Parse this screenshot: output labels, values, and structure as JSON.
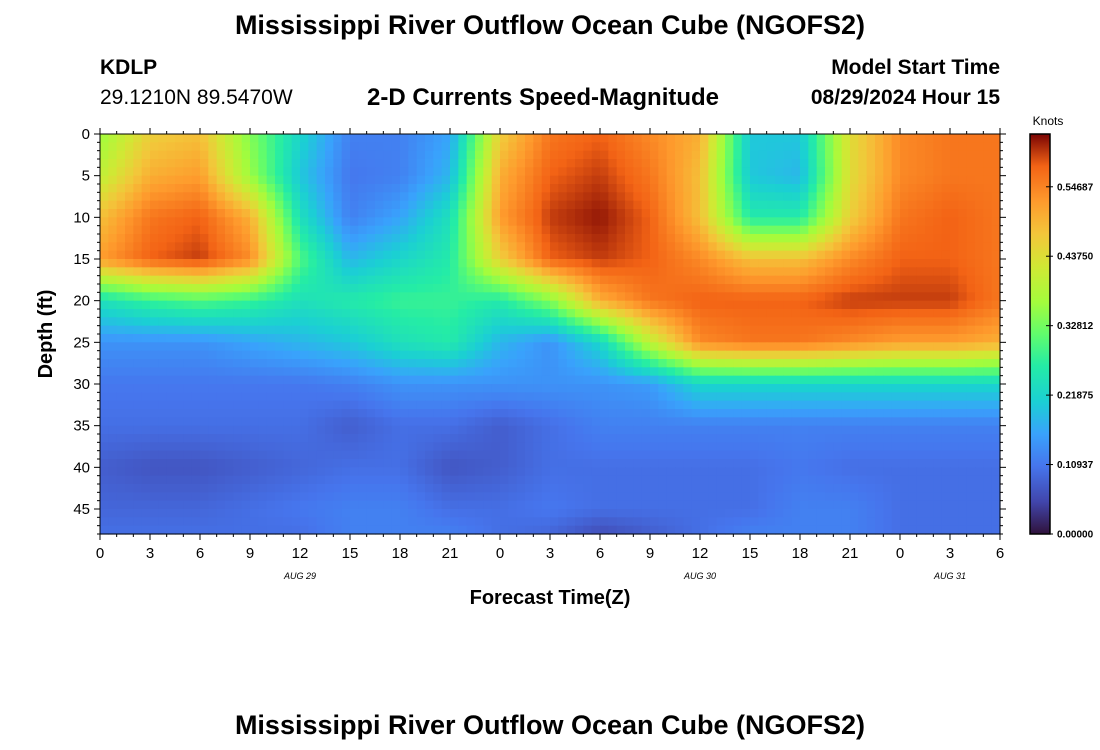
{
  "page": {
    "title": "Mississippi River Outflow Ocean Cube (NGOFS2)",
    "station": "KDLP",
    "coords": "29.1210N  89.5470W",
    "subtitle": "2-D Currents Speed-Magnitude",
    "model_start_label": "Model Start Time",
    "model_start_value": "08/29/2024 Hour 15",
    "bottom_title": "Mississippi River Outflow Ocean Cube (NGOFS2)"
  },
  "chart_data": {
    "type": "heatmap",
    "xlabel": "Forecast Time(Z)",
    "ylabel": "Depth (ft)",
    "x_tick_labels": [
      "0",
      "3",
      "6",
      "9",
      "12",
      "15",
      "18",
      "21",
      "0",
      "3",
      "6",
      "9",
      "12",
      "15",
      "18",
      "21",
      "0",
      "3",
      "6"
    ],
    "date_labels": [
      {
        "text": "AUG 29",
        "hour": 12
      },
      {
        "text": "AUG 30",
        "hour": 36
      },
      {
        "text": "AUG 31",
        "hour": 51
      }
    ],
    "y_ticks": [
      0,
      5,
      10,
      15,
      20,
      25,
      30,
      35,
      40,
      45
    ],
    "xlim_hours": [
      0,
      54
    ],
    "ylim_ft": [
      0,
      48
    ],
    "colorbar": {
      "unit_label": "Knots",
      "tick_labels": [
        "0.54687",
        "0.43750",
        "0.32812",
        "0.21875",
        "0.10937",
        "0.00000"
      ],
      "tick_values": [
        0.54687,
        0.4375,
        0.32812,
        0.21875,
        0.10937,
        0.0
      ],
      "max_value": 0.63
    },
    "speed_field_knots": {
      "depths_ft": [
        0,
        5,
        10,
        15,
        20,
        25,
        30,
        35,
        40,
        45,
        48
      ],
      "hours": [
        0,
        3,
        6,
        9,
        12,
        15,
        18,
        21,
        24,
        27,
        30,
        33,
        36,
        39,
        42,
        45,
        48,
        51,
        54
      ],
      "values": [
        [
          0.36,
          0.46,
          0.48,
          0.34,
          0.22,
          0.12,
          0.12,
          0.16,
          0.46,
          0.56,
          0.58,
          0.54,
          0.5,
          0.2,
          0.2,
          0.44,
          0.54,
          0.56,
          0.56
        ],
        [
          0.4,
          0.5,
          0.52,
          0.36,
          0.2,
          0.11,
          0.12,
          0.18,
          0.5,
          0.58,
          0.6,
          0.56,
          0.48,
          0.2,
          0.18,
          0.44,
          0.54,
          0.56,
          0.56
        ],
        [
          0.48,
          0.56,
          0.58,
          0.5,
          0.24,
          0.12,
          0.16,
          0.24,
          0.52,
          0.6,
          0.62,
          0.58,
          0.48,
          0.26,
          0.26,
          0.46,
          0.56,
          0.58,
          0.56
        ],
        [
          0.52,
          0.58,
          0.6,
          0.54,
          0.3,
          0.18,
          0.22,
          0.26,
          0.46,
          0.58,
          0.6,
          0.58,
          0.54,
          0.48,
          0.48,
          0.54,
          0.58,
          0.58,
          0.56
        ],
        [
          0.24,
          0.28,
          0.3,
          0.28,
          0.24,
          0.26,
          0.28,
          0.28,
          0.26,
          0.34,
          0.5,
          0.56,
          0.58,
          0.58,
          0.58,
          0.6,
          0.6,
          0.6,
          0.56
        ],
        [
          0.14,
          0.14,
          0.14,
          0.16,
          0.18,
          0.2,
          0.24,
          0.26,
          0.18,
          0.14,
          0.22,
          0.4,
          0.54,
          0.56,
          0.56,
          0.54,
          0.52,
          0.52,
          0.5
        ],
        [
          0.11,
          0.11,
          0.11,
          0.11,
          0.11,
          0.12,
          0.14,
          0.14,
          0.14,
          0.14,
          0.14,
          0.15,
          0.22,
          0.22,
          0.22,
          0.22,
          0.22,
          0.22,
          0.22
        ],
        [
          0.1,
          0.1,
          0.1,
          0.1,
          0.1,
          0.08,
          0.1,
          0.1,
          0.08,
          0.1,
          0.12,
          0.12,
          0.12,
          0.12,
          0.12,
          0.12,
          0.12,
          0.12,
          0.12
        ],
        [
          0.08,
          0.07,
          0.07,
          0.08,
          0.09,
          0.1,
          0.1,
          0.07,
          0.08,
          0.1,
          0.1,
          0.1,
          0.1,
          0.1,
          0.11,
          0.1,
          0.1,
          0.1,
          0.1
        ],
        [
          0.09,
          0.09,
          0.09,
          0.1,
          0.11,
          0.12,
          0.12,
          0.1,
          0.1,
          0.11,
          0.1,
          0.1,
          0.1,
          0.1,
          0.12,
          0.12,
          0.1,
          0.1,
          0.1
        ],
        [
          0.1,
          0.1,
          0.1,
          0.1,
          0.1,
          0.12,
          0.12,
          0.12,
          0.1,
          0.09,
          0.06,
          0.08,
          0.1,
          0.12,
          0.12,
          0.12,
          0.1,
          0.1,
          0.1
        ]
      ]
    }
  }
}
